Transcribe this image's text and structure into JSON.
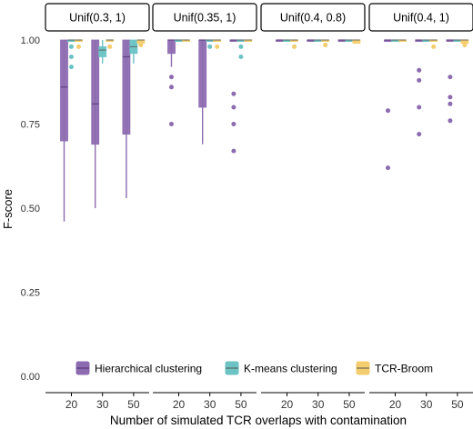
{
  "colors": {
    "hierarchical": "#8d6bb0",
    "kmeans": "#6cc3c4",
    "tcrbroom": "#f4cd6e",
    "median_line": "#4b2e6e",
    "strip_fill": "#ffffff",
    "strip_border": "#000000",
    "axis_text": "#000000"
  },
  "chart_data": {
    "type": "boxplot",
    "ylabel": "F-score",
    "xlabel": "Number of simulated TCR overlaps with contamination",
    "ylim": [
      0,
      1.0
    ],
    "yticks": [
      0.0,
      0.25,
      0.5,
      0.75,
      1.0
    ],
    "ytick_labels": [
      "0.00",
      "0.25",
      "0.50",
      "0.75",
      "1.00"
    ],
    "categories": [
      "20",
      "30",
      "50"
    ],
    "grid": false,
    "legend_position": "bottom",
    "legend": [
      {
        "key": "hierarchical",
        "label": "Hierarchical clustering"
      },
      {
        "key": "kmeans",
        "label": "K-means clustering"
      },
      {
        "key": "tcrbroom",
        "label": "TCR-Broom"
      }
    ],
    "panels": [
      {
        "title": "Unif(0.3, 1)",
        "groups": [
          {
            "x": "20",
            "boxes": [
              {
                "series": "hierarchical",
                "whisker_low": 0.46,
                "q1": 0.7,
                "median": 0.86,
                "q3": 1.0,
                "whisker_high": 1.0,
                "outliers": []
              },
              {
                "series": "kmeans",
                "whisker_low": 1.0,
                "q1": 1.0,
                "median": 1.0,
                "q3": 1.0,
                "whisker_high": 1.0,
                "outliers": [
                  0.92,
                  0.95,
                  0.98
                ]
              },
              {
                "series": "tcrbroom",
                "whisker_low": 1.0,
                "q1": 1.0,
                "median": 1.0,
                "q3": 1.0,
                "whisker_high": 1.0,
                "outliers": [
                  0.98
                ]
              }
            ]
          },
          {
            "x": "30",
            "boxes": [
              {
                "series": "hierarchical",
                "whisker_low": 0.5,
                "q1": 0.69,
                "median": 0.81,
                "q3": 1.0,
                "whisker_high": 1.0,
                "outliers": []
              },
              {
                "series": "kmeans",
                "whisker_low": 0.93,
                "q1": 0.95,
                "median": 0.97,
                "q3": 0.98,
                "whisker_high": 1.0,
                "outliers": []
              },
              {
                "series": "tcrbroom",
                "whisker_low": 1.0,
                "q1": 1.0,
                "median": 1.0,
                "q3": 1.0,
                "whisker_high": 1.0,
                "outliers": [
                  0.98
                ]
              }
            ]
          },
          {
            "x": "50",
            "boxes": [
              {
                "series": "hierarchical",
                "whisker_low": 0.53,
                "q1": 0.72,
                "median": 0.95,
                "q3": 1.0,
                "whisker_high": 1.0,
                "outliers": []
              },
              {
                "series": "kmeans",
                "whisker_low": 0.93,
                "q1": 0.96,
                "median": 0.98,
                "q3": 1.0,
                "whisker_high": 1.0,
                "outliers": []
              },
              {
                "series": "tcrbroom",
                "whisker_low": 0.99,
                "q1": 0.99,
                "median": 1.0,
                "q3": 1.0,
                "whisker_high": 1.0,
                "outliers": [
                  0.985
                ]
              }
            ]
          }
        ]
      },
      {
        "title": "Unif(0.35, 1)",
        "groups": [
          {
            "x": "20",
            "boxes": [
              {
                "series": "hierarchical",
                "whisker_low": 0.92,
                "q1": 0.96,
                "median": 1.0,
                "q3": 1.0,
                "whisker_high": 1.0,
                "outliers": [
                  0.75,
                  0.86,
                  0.89
                ]
              },
              {
                "series": "kmeans",
                "whisker_low": 1.0,
                "q1": 1.0,
                "median": 1.0,
                "q3": 1.0,
                "whisker_high": 1.0,
                "outliers": []
              },
              {
                "series": "tcrbroom",
                "whisker_low": 1.0,
                "q1": 1.0,
                "median": 1.0,
                "q3": 1.0,
                "whisker_high": 1.0,
                "outliers": []
              }
            ]
          },
          {
            "x": "30",
            "boxes": [
              {
                "series": "hierarchical",
                "whisker_low": 0.69,
                "q1": 0.8,
                "median": 1.0,
                "q3": 1.0,
                "whisker_high": 1.0,
                "outliers": []
              },
              {
                "series": "kmeans",
                "whisker_low": 1.0,
                "q1": 1.0,
                "median": 1.0,
                "q3": 1.0,
                "whisker_high": 1.0,
                "outliers": [
                  0.98
                ]
              },
              {
                "series": "tcrbroom",
                "whisker_low": 1.0,
                "q1": 1.0,
                "median": 1.0,
                "q3": 1.0,
                "whisker_high": 1.0,
                "outliers": [
                  0.98
                ]
              }
            ]
          },
          {
            "x": "50",
            "boxes": [
              {
                "series": "hierarchical",
                "whisker_low": 1.0,
                "q1": 1.0,
                "median": 1.0,
                "q3": 1.0,
                "whisker_high": 1.0,
                "outliers": [
                  0.67,
                  0.75,
                  0.8,
                  0.84
                ]
              },
              {
                "series": "kmeans",
                "whisker_low": 1.0,
                "q1": 1.0,
                "median": 1.0,
                "q3": 1.0,
                "whisker_high": 1.0,
                "outliers": [
                  0.95,
                  0.98
                ]
              },
              {
                "series": "tcrbroom",
                "whisker_low": 1.0,
                "q1": 1.0,
                "median": 1.0,
                "q3": 1.0,
                "whisker_high": 1.0,
                "outliers": []
              }
            ]
          }
        ]
      },
      {
        "title": "Unif(0.4, 0.8)",
        "groups": [
          {
            "x": "20",
            "boxes": [
              {
                "series": "hierarchical",
                "whisker_low": 1.0,
                "q1": 1.0,
                "median": 1.0,
                "q3": 1.0,
                "whisker_high": 1.0,
                "outliers": []
              },
              {
                "series": "kmeans",
                "whisker_low": 1.0,
                "q1": 1.0,
                "median": 1.0,
                "q3": 1.0,
                "whisker_high": 1.0,
                "outliers": []
              },
              {
                "series": "tcrbroom",
                "whisker_low": 1.0,
                "q1": 1.0,
                "median": 1.0,
                "q3": 1.0,
                "whisker_high": 1.0,
                "outliers": [
                  0.98
                ]
              }
            ]
          },
          {
            "x": "30",
            "boxes": [
              {
                "series": "hierarchical",
                "whisker_low": 1.0,
                "q1": 1.0,
                "median": 1.0,
                "q3": 1.0,
                "whisker_high": 1.0,
                "outliers": []
              },
              {
                "series": "kmeans",
                "whisker_low": 1.0,
                "q1": 1.0,
                "median": 1.0,
                "q3": 1.0,
                "whisker_high": 1.0,
                "outliers": []
              },
              {
                "series": "tcrbroom",
                "whisker_low": 1.0,
                "q1": 1.0,
                "median": 1.0,
                "q3": 1.0,
                "whisker_high": 1.0,
                "outliers": [
                  0.985
                ]
              }
            ]
          },
          {
            "x": "50",
            "boxes": [
              {
                "series": "hierarchical",
                "whisker_low": 1.0,
                "q1": 1.0,
                "median": 1.0,
                "q3": 1.0,
                "whisker_high": 1.0,
                "outliers": []
              },
              {
                "series": "kmeans",
                "whisker_low": 1.0,
                "q1": 1.0,
                "median": 1.0,
                "q3": 1.0,
                "whisker_high": 1.0,
                "outliers": []
              },
              {
                "series": "tcrbroom",
                "whisker_low": 0.99,
                "q1": 0.99,
                "median": 1.0,
                "q3": 1.0,
                "whisker_high": 1.0,
                "outliers": []
              }
            ]
          }
        ]
      },
      {
        "title": "Unif(0.4, 1)",
        "groups": [
          {
            "x": "20",
            "boxes": [
              {
                "series": "hierarchical",
                "whisker_low": 1.0,
                "q1": 1.0,
                "median": 1.0,
                "q3": 1.0,
                "whisker_high": 1.0,
                "outliers": [
                  0.62,
                  0.79
                ]
              },
              {
                "series": "kmeans",
                "whisker_low": 1.0,
                "q1": 1.0,
                "median": 1.0,
                "q3": 1.0,
                "whisker_high": 1.0,
                "outliers": []
              },
              {
                "series": "tcrbroom",
                "whisker_low": 1.0,
                "q1": 1.0,
                "median": 1.0,
                "q3": 1.0,
                "whisker_high": 1.0,
                "outliers": []
              }
            ]
          },
          {
            "x": "30",
            "boxes": [
              {
                "series": "hierarchical",
                "whisker_low": 1.0,
                "q1": 1.0,
                "median": 1.0,
                "q3": 1.0,
                "whisker_high": 1.0,
                "outliers": [
                  0.72,
                  0.8,
                  0.88,
                  0.91
                ]
              },
              {
                "series": "kmeans",
                "whisker_low": 1.0,
                "q1": 1.0,
                "median": 1.0,
                "q3": 1.0,
                "whisker_high": 1.0,
                "outliers": []
              },
              {
                "series": "tcrbroom",
                "whisker_low": 1.0,
                "q1": 1.0,
                "median": 1.0,
                "q3": 1.0,
                "whisker_high": 1.0,
                "outliers": [
                  0.98
                ]
              }
            ]
          },
          {
            "x": "50",
            "boxes": [
              {
                "series": "hierarchical",
                "whisker_low": 1.0,
                "q1": 1.0,
                "median": 1.0,
                "q3": 1.0,
                "whisker_high": 1.0,
                "outliers": [
                  0.76,
                  0.81,
                  0.83,
                  0.89
                ]
              },
              {
                "series": "kmeans",
                "whisker_low": 1.0,
                "q1": 1.0,
                "median": 1.0,
                "q3": 1.0,
                "whisker_high": 1.0,
                "outliers": []
              },
              {
                "series": "tcrbroom",
                "whisker_low": 0.99,
                "q1": 0.99,
                "median": 1.0,
                "q3": 1.0,
                "whisker_high": 1.0,
                "outliers": [
                  0.985
                ]
              }
            ]
          }
        ]
      }
    ]
  }
}
